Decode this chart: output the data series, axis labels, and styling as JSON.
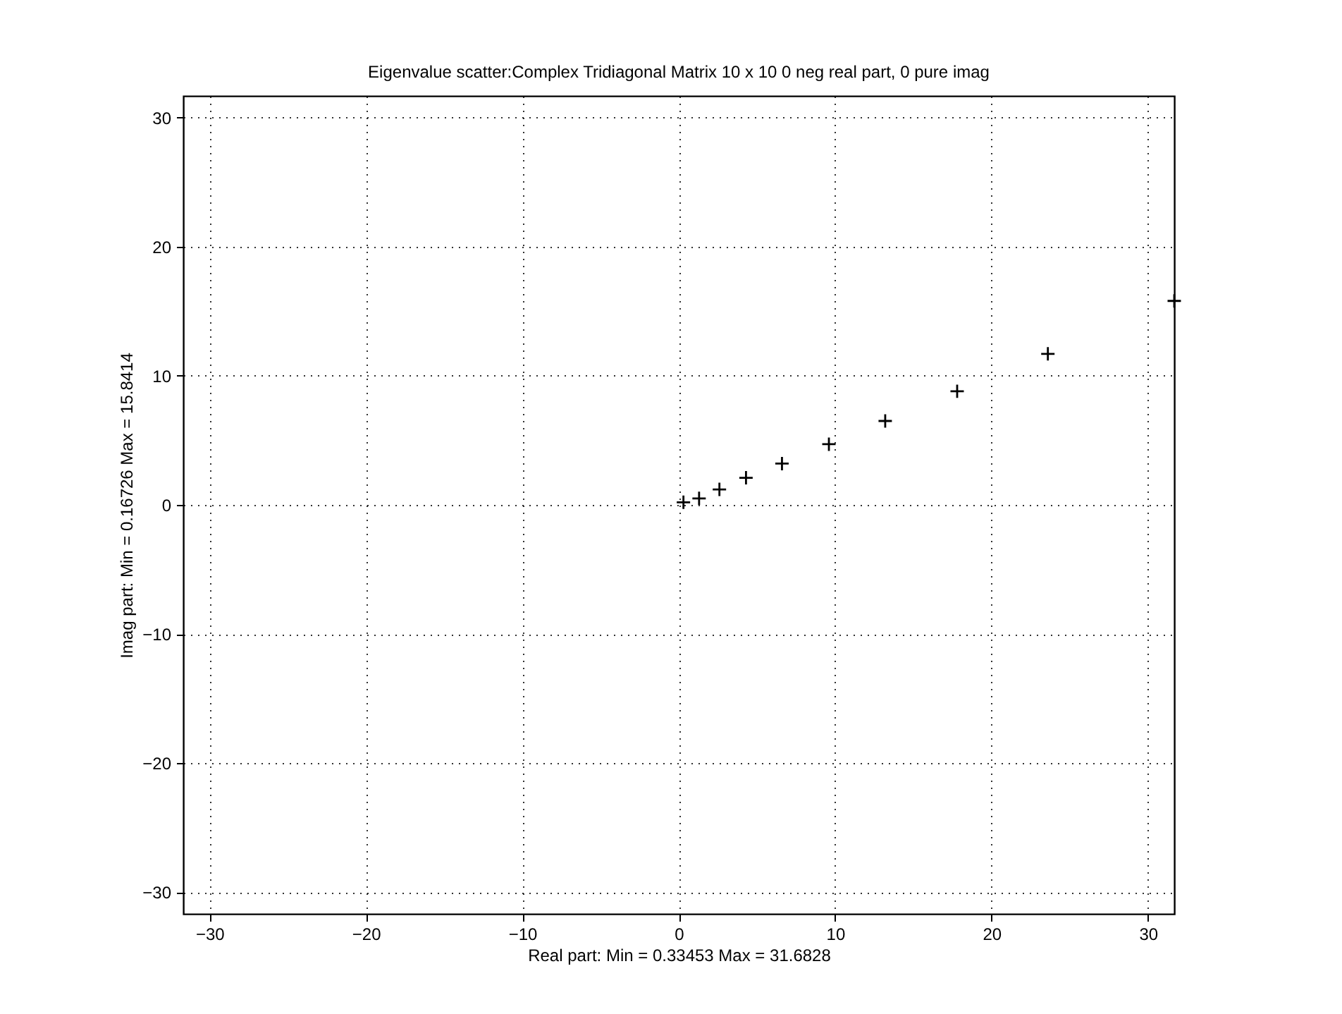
{
  "chart_data": {
    "type": "scatter",
    "title": "Eigenvalue scatter:Complex Tridiagonal Matrix  10 x 10    0 neg real part, 0 pure imag",
    "xlabel": "Real part: Min = 0.33453  Max = 31.6828",
    "ylabel": "Imag part: Min = 0.16726  Max = 15.8414",
    "x": [
      0.3,
      1.3,
      2.6,
      4.3,
      6.6,
      9.6,
      13.2,
      17.8,
      23.6,
      31.68
    ],
    "series": [
      {
        "color": "#000000",
        "values": [
          0.2,
          0.5,
          1.2,
          2.1,
          3.2,
          4.7,
          6.5,
          8.8,
          11.7,
          15.8
        ]
      }
    ],
    "xlim": [
      -31.68,
      31.68
    ],
    "ylim": [
      -31.68,
      31.68
    ],
    "xticks": [
      -30,
      -20,
      -10,
      0,
      10,
      20,
      30
    ],
    "yticks": [
      -30,
      -20,
      -10,
      0,
      10,
      20,
      30
    ],
    "grid": true,
    "marker": "cross"
  }
}
